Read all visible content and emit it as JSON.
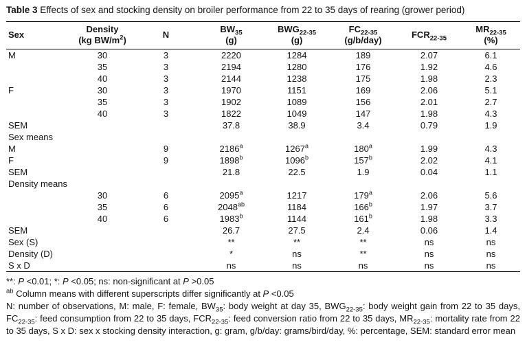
{
  "page": {
    "background": "#ffffff",
    "text_color": "#141414",
    "rule_color": "#000000"
  },
  "title": {
    "bold": "Table 3",
    "rest": " Effects of sex and stocking density on broiler performance from 22 to 35 days of rearing (grower period)"
  },
  "table": {
    "columns": [
      {
        "main": "Sex"
      },
      {
        "main": "Density",
        "unit_pre": "(kg BW/m",
        "unit_sup": "2",
        "unit_post": ")"
      },
      {
        "main": "N"
      },
      {
        "main": "BW",
        "sub": "35",
        "unit_pre": "(g)"
      },
      {
        "main": "BWG",
        "sub": "22-35",
        "unit_pre": "(g)"
      },
      {
        "main": "FC",
        "sub": "22-35",
        "unit_pre": "(g/b/day)"
      },
      {
        "main": "FCR",
        "sub": "22-35"
      },
      {
        "main": "MR",
        "sub": "22-35",
        "unit_pre": "(%)"
      }
    ],
    "rows": [
      [
        "M",
        "30",
        "3",
        "2220",
        "1284",
        "189",
        "2.07",
        "6.1"
      ],
      [
        "",
        "35",
        "3",
        "2194",
        "1280",
        "176",
        "1.92",
        "4.6"
      ],
      [
        "",
        "40",
        "3",
        "2144",
        "1238",
        "175",
        "1.98",
        "2.3"
      ],
      [
        "F",
        "30",
        "3",
        "1970",
        "1151",
        "169",
        "2.06",
        "5.1"
      ],
      [
        "",
        "35",
        "3",
        "1902",
        "1089",
        "156",
        "2.01",
        "2.7"
      ],
      [
        "",
        "40",
        "3",
        "1822",
        "1049",
        "147",
        "1.98",
        "4.3"
      ],
      [
        "SEM",
        "",
        "",
        "37.8",
        "38.9",
        "3.4",
        "0.79",
        "1.9"
      ],
      [
        "Sex means",
        "",
        "",
        "",
        "",
        "",
        "",
        ""
      ],
      [
        "M",
        "",
        "9",
        {
          "v": "2186",
          "s": "a"
        },
        {
          "v": "1267",
          "s": "a"
        },
        {
          "v": "180",
          "s": "a"
        },
        "1.99",
        "4.3"
      ],
      [
        "F",
        "",
        "9",
        {
          "v": "1898",
          "s": "b"
        },
        {
          "v": "1096",
          "s": "b"
        },
        {
          "v": "157",
          "s": "b"
        },
        "2.02",
        "4.1"
      ],
      [
        "SEM",
        "",
        "",
        "21.8",
        "22.5",
        "1.9",
        "0.04",
        "1.1"
      ],
      [
        "Density means",
        "",
        "",
        "",
        "",
        "",
        "",
        ""
      ],
      [
        "",
        "30",
        "6",
        {
          "v": "2095",
          "s": "a"
        },
        "1217",
        {
          "v": "179",
          "s": "a"
        },
        "2.06",
        "5.6"
      ],
      [
        "",
        "35",
        "6",
        {
          "v": "2048",
          "s": "ab"
        },
        "1184",
        {
          "v": "166",
          "s": "b"
        },
        "1.97",
        "3.7"
      ],
      [
        "",
        "40",
        "6",
        {
          "v": "1983",
          "s": "b"
        },
        "1144",
        {
          "v": "161",
          "s": "b"
        },
        "1.98",
        "3.3"
      ],
      [
        "SEM",
        "",
        "",
        "26.7",
        "27.5",
        "2.4",
        "0.06",
        "1.4"
      ],
      [
        "Sex (S)",
        "",
        "",
        "**",
        "**",
        "**",
        "ns",
        "ns"
      ],
      [
        "Density (D)",
        "",
        "",
        "*",
        "ns",
        "**",
        "ns",
        "ns"
      ],
      [
        "S x D",
        "",
        "",
        "ns",
        "ns",
        "ns",
        "ns",
        "ns"
      ]
    ]
  },
  "footnotes": [
    {
      "name": "footnote-significance",
      "segments": [
        {
          "t": "**: "
        },
        {
          "t": "P",
          "i": true
        },
        {
          "t": " <0.01; *: "
        },
        {
          "t": "P",
          "i": true
        },
        {
          "t": " <0.05; ns: non-significant at "
        },
        {
          "t": "P",
          "i": true
        },
        {
          "t": " >0.05"
        }
      ]
    },
    {
      "name": "footnote-superscripts",
      "segments": [
        {
          "t": "ab",
          "sup": true
        },
        {
          "t": " Column means with different superscripts differ significantly at "
        },
        {
          "t": "P",
          "i": true
        },
        {
          "t": " <0.05"
        }
      ]
    },
    {
      "name": "footnote-abbreviations",
      "justify": true,
      "segments": [
        {
          "t": "N: number of observations, M: male, F: female, BW"
        },
        {
          "t": "35",
          "sub": true
        },
        {
          "t": ": body weight at day 35, BWG"
        },
        {
          "t": "22-35",
          "sub": true
        },
        {
          "t": ": body weight gain from 22 to 35 days, FC"
        },
        {
          "t": "22-35",
          "sub": true
        },
        {
          "t": ": feed consumption from 22 to 35 days, FCR"
        },
        {
          "t": "22-35",
          "sub": true
        },
        {
          "t": ": feed conversion ratio from 22 to 35 days, MR"
        },
        {
          "t": "22-35",
          "sub": true
        },
        {
          "t": ": mortality rate from 22 to 35 days, S x D: sex x stocking density interaction, g: gram, g/b/day: grams/bird/day, %: percentage, SEM: standard error mean"
        }
      ]
    }
  ]
}
